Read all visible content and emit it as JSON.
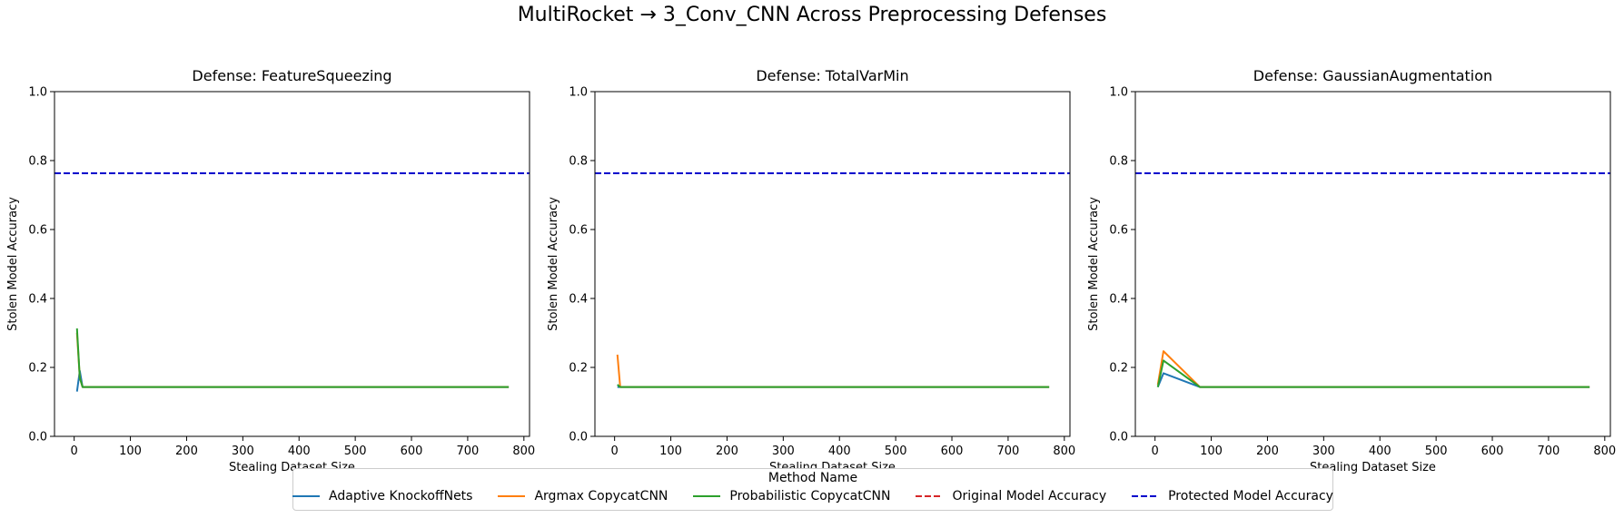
{
  "figure": {
    "title": "MultiRocket → 3_Conv_CNN Across Preprocessing Defenses"
  },
  "colors": {
    "Adaptive KnockoffNets": "#1f77b4",
    "Argmax CopycatCNN": "#ff7f0e",
    "Probabilistic CopycatCNN": "#2ca02c",
    "Original Model Accuracy": "#d62728",
    "Protected Model Accuracy": "#0000cc"
  },
  "legend": {
    "title": "Method Name",
    "entries": [
      {
        "label": "Adaptive KnockoffNets",
        "style": "solid"
      },
      {
        "label": "Argmax CopycatCNN",
        "style": "solid"
      },
      {
        "label": "Probabilistic CopycatCNN",
        "style": "solid"
      },
      {
        "label": "Original Model Accuracy",
        "style": "dashed"
      },
      {
        "label": "Protected Model Accuracy",
        "style": "dashed"
      }
    ]
  },
  "chart_data": [
    {
      "type": "line",
      "title": "Defense: FeatureSqueezing",
      "xlabel": "Stealing Dataset Size",
      "ylabel": "Stolen Model Accuracy",
      "xlim": [
        -35,
        810
      ],
      "ylim": [
        0,
        1.0
      ],
      "xticks": [
        0,
        100,
        200,
        300,
        400,
        500,
        600,
        700,
        800
      ],
      "yticks": [
        0.0,
        0.2,
        0.4,
        0.6,
        0.8,
        1.0
      ],
      "hlines": [
        {
          "name": "Protected Model Accuracy",
          "y": 0.763,
          "style": "dashed"
        }
      ],
      "series": [
        {
          "name": "Adaptive KnockoffNets",
          "x": [
            5,
            10,
            15,
            20,
            50,
            80,
            100,
            200,
            400,
            773
          ],
          "y": [
            0.13,
            0.19,
            0.143,
            0.143,
            0.143,
            0.143,
            0.143,
            0.143,
            0.143,
            0.143
          ]
        },
        {
          "name": "Argmax CopycatCNN",
          "x": [
            5,
            10,
            15,
            20,
            50,
            80,
            100,
            200,
            400,
            773
          ],
          "y": [
            0.3,
            0.17,
            0.143,
            0.143,
            0.143,
            0.143,
            0.143,
            0.143,
            0.143,
            0.143
          ]
        },
        {
          "name": "Probabilistic CopycatCNN",
          "x": [
            5,
            10,
            15,
            20,
            50,
            80,
            100,
            200,
            400,
            773
          ],
          "y": [
            0.313,
            0.17,
            0.143,
            0.143,
            0.143,
            0.143,
            0.143,
            0.143,
            0.143,
            0.143
          ]
        }
      ]
    },
    {
      "type": "line",
      "title": "Defense: TotalVarMin",
      "xlabel": "Stealing Dataset Size",
      "ylabel": "Stolen Model Accuracy",
      "xlim": [
        -35,
        810
      ],
      "ylim": [
        0,
        1.0
      ],
      "xticks": [
        0,
        100,
        200,
        300,
        400,
        500,
        600,
        700,
        800
      ],
      "yticks": [
        0.0,
        0.2,
        0.4,
        0.6,
        0.8,
        1.0
      ],
      "hlines": [
        {
          "name": "Protected Model Accuracy",
          "y": 0.763,
          "style": "dashed"
        }
      ],
      "series": [
        {
          "name": "Adaptive KnockoffNets",
          "x": [
            5,
            10,
            15,
            20,
            50,
            80,
            100,
            200,
            400,
            773
          ],
          "y": [
            0.143,
            0.143,
            0.143,
            0.143,
            0.143,
            0.143,
            0.143,
            0.143,
            0.143,
            0.143
          ]
        },
        {
          "name": "Argmax CopycatCNN",
          "x": [
            5,
            10,
            15,
            20,
            50,
            80,
            100,
            200,
            400,
            773
          ],
          "y": [
            0.237,
            0.143,
            0.143,
            0.143,
            0.143,
            0.143,
            0.143,
            0.143,
            0.143,
            0.143
          ]
        },
        {
          "name": "Probabilistic CopycatCNN",
          "x": [
            5,
            10,
            15,
            20,
            50,
            80,
            100,
            200,
            400,
            773
          ],
          "y": [
            0.15,
            0.143,
            0.143,
            0.143,
            0.143,
            0.143,
            0.143,
            0.143,
            0.143,
            0.143
          ]
        }
      ]
    },
    {
      "type": "line",
      "title": "Defense: GaussianAugmentation",
      "xlabel": "Stealing Dataset Size",
      "ylabel": "Stolen Model Accuracy",
      "xlim": [
        -35,
        810
      ],
      "ylim": [
        0,
        1.0
      ],
      "xticks": [
        0,
        100,
        200,
        300,
        400,
        500,
        600,
        700,
        800
      ],
      "yticks": [
        0.0,
        0.2,
        0.4,
        0.6,
        0.8,
        1.0
      ],
      "hlines": [
        {
          "name": "Protected Model Accuracy",
          "y": 0.763,
          "style": "dashed"
        }
      ],
      "series": [
        {
          "name": "Adaptive KnockoffNets",
          "x": [
            5,
            15,
            80,
            100,
            200,
            400,
            773
          ],
          "y": [
            0.143,
            0.183,
            0.143,
            0.143,
            0.143,
            0.143,
            0.143
          ]
        },
        {
          "name": "Argmax CopycatCNN",
          "x": [
            5,
            15,
            80,
            100,
            200,
            400,
            773
          ],
          "y": [
            0.15,
            0.247,
            0.143,
            0.143,
            0.143,
            0.143,
            0.143
          ]
        },
        {
          "name": "Probabilistic CopycatCNN",
          "x": [
            5,
            15,
            80,
            100,
            200,
            400,
            773
          ],
          "y": [
            0.143,
            0.22,
            0.143,
            0.143,
            0.143,
            0.143,
            0.143
          ]
        }
      ]
    }
  ]
}
